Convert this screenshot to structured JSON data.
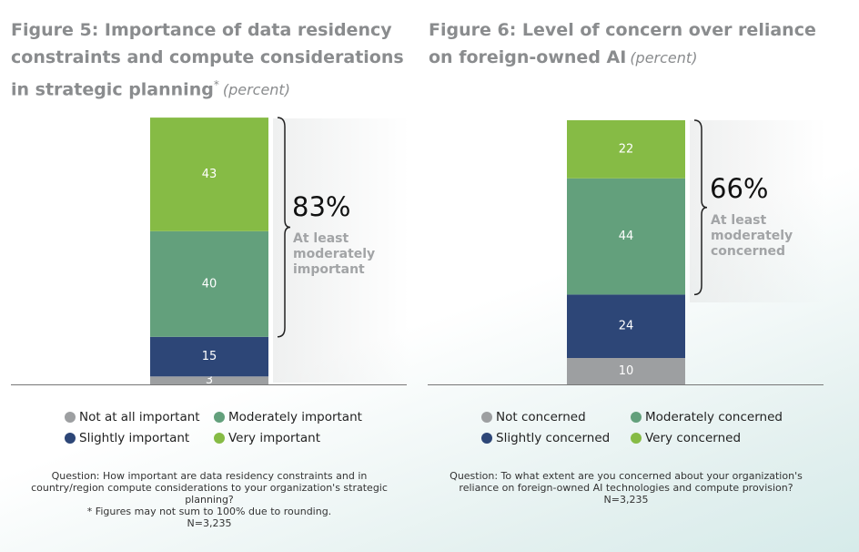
{
  "chart_data": [
    {
      "type": "bar",
      "title": "Figure 5: Importance of data residency constraints and compute considerations in strategic planning",
      "title_mark": "*",
      "unit": "(percent)",
      "series": [
        {
          "name": "Not at all important",
          "color": "#9d9fa1",
          "values": [
            3
          ]
        },
        {
          "name": "Slightly important",
          "color": "#2d4677",
          "values": [
            15
          ]
        },
        {
          "name": "Moderately important",
          "color": "#63a07c",
          "values": [
            40
          ]
        },
        {
          "name": "Very important",
          "color": "#86bb45",
          "values": [
            43
          ]
        }
      ],
      "callout_value": 83,
      "callout_label": "83%",
      "callout_text": "At least moderately important",
      "notes": [
        "Question: How important are data residency constraints and in country/region compute considerations to your organization's strategic planning?",
        "* Figures may not sum to 100% due to rounding.",
        "N=3,235"
      ]
    },
    {
      "type": "bar",
      "title": "Figure 6: Level of concern over reliance on foreign-owned AI",
      "unit": "(percent)",
      "series": [
        {
          "name": "Not concerned",
          "color": "#9d9fa1",
          "values": [
            10
          ]
        },
        {
          "name": "Slightly concerned",
          "color": "#2d4677",
          "values": [
            24
          ]
        },
        {
          "name": "Moderately concerned",
          "color": "#63a07c",
          "values": [
            44
          ]
        },
        {
          "name": "Very concerned",
          "color": "#86bb45",
          "values": [
            22
          ]
        }
      ],
      "callout_value": 66,
      "callout_label": "66%",
      "callout_text": "At least moderately concerned",
      "notes": [
        "Question: To what extent are you concerned about your organization's reliance on foreign-owned AI technologies and compute provision?",
        "N=3,235"
      ]
    }
  ]
}
